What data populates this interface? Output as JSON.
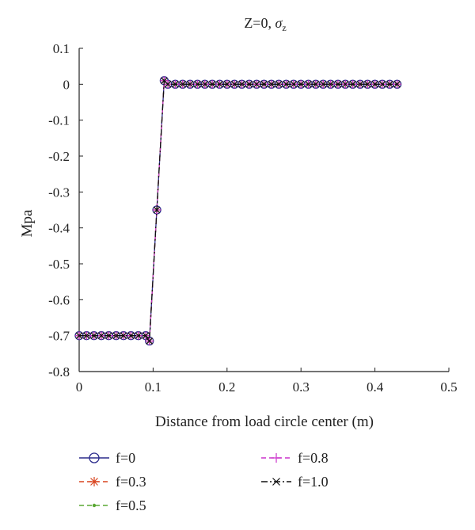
{
  "chart_data": {
    "type": "line",
    "title": "Z=0, σz",
    "title_main": "Z=0, ",
    "title_symbol": "σ",
    "title_subscript": "z",
    "xlabel": "Distance from load circle center (m)",
    "ylabel": "Mpa",
    "xlim": [
      0,
      0.5
    ],
    "ylim": [
      -0.8,
      0.1
    ],
    "xticks": [
      0,
      0.1,
      0.2,
      0.3,
      0.4,
      0.5
    ],
    "xtick_labels": [
      "0",
      "0.1",
      "0.2",
      "0.3",
      "0.4",
      "0.5"
    ],
    "yticks": [
      0.1,
      0,
      -0.1,
      -0.2,
      -0.3,
      -0.4,
      -0.5,
      -0.6,
      -0.7,
      -0.8
    ],
    "ytick_labels": [
      "0.1",
      "0",
      "-0.1",
      "-0.2",
      "-0.3",
      "-0.4",
      "-0.5",
      "-0.6",
      "-0.7",
      "-0.8"
    ],
    "grid": false,
    "legend_position": "bottom",
    "x": [
      0,
      0.01,
      0.02,
      0.03,
      0.04,
      0.05,
      0.06,
      0.07,
      0.08,
      0.09,
      0.095,
      0.105,
      0.115,
      0.12,
      0.13,
      0.14,
      0.15,
      0.16,
      0.17,
      0.18,
      0.19,
      0.2,
      0.21,
      0.22,
      0.23,
      0.24,
      0.25,
      0.26,
      0.27,
      0.28,
      0.29,
      0.3,
      0.31,
      0.32,
      0.33,
      0.34,
      0.35,
      0.36,
      0.37,
      0.38,
      0.39,
      0.4,
      0.41,
      0.42,
      0.43
    ],
    "series": [
      {
        "name": "f=0",
        "color": "#2b2b8c",
        "marker": "circle",
        "dash": "solid",
        "values": [
          -0.7,
          -0.7,
          -0.7,
          -0.7,
          -0.7,
          -0.7,
          -0.7,
          -0.7,
          -0.7,
          -0.7,
          -0.715,
          -0.35,
          0.01,
          0.0,
          0.0,
          0.0,
          0.0,
          0.0,
          0.0,
          0.0,
          0.0,
          0.0,
          0.0,
          0.0,
          0.0,
          0.0,
          0.0,
          0.0,
          0.0,
          0.0,
          0.0,
          0.0,
          0.0,
          0.0,
          0.0,
          0.0,
          0.0,
          0.0,
          0.0,
          0.0,
          0.0,
          0.0,
          0.0,
          0.0,
          0.0
        ]
      },
      {
        "name": "f=0.3",
        "color": "#d9431e",
        "marker": "star",
        "dash": "dashed",
        "values": [
          -0.7,
          -0.7,
          -0.7,
          -0.7,
          -0.7,
          -0.7,
          -0.7,
          -0.7,
          -0.7,
          -0.7,
          -0.715,
          -0.35,
          0.01,
          0.0,
          0.0,
          0.0,
          0.0,
          0.0,
          0.0,
          0.0,
          0.0,
          0.0,
          0.0,
          0.0,
          0.0,
          0.0,
          0.0,
          0.0,
          0.0,
          0.0,
          0.0,
          0.0,
          0.0,
          0.0,
          0.0,
          0.0,
          0.0,
          0.0,
          0.0,
          0.0,
          0.0,
          0.0,
          0.0,
          0.0,
          0.0
        ]
      },
      {
        "name": "f=0.5",
        "color": "#5aa833",
        "marker": "dot",
        "dash": "dashed",
        "values": [
          -0.7,
          -0.7,
          -0.7,
          -0.7,
          -0.7,
          -0.7,
          -0.7,
          -0.7,
          -0.7,
          -0.7,
          -0.715,
          -0.35,
          0.01,
          0.0,
          0.0,
          0.0,
          0.0,
          0.0,
          0.0,
          0.0,
          0.0,
          0.0,
          0.0,
          0.0,
          0.0,
          0.0,
          0.0,
          0.0,
          0.0,
          0.0,
          0.0,
          0.0,
          0.0,
          0.0,
          0.0,
          0.0,
          0.0,
          0.0,
          0.0,
          0.0,
          0.0,
          0.0,
          0.0,
          0.0,
          0.0
        ]
      },
      {
        "name": "f=0.8",
        "color": "#cc33cc",
        "marker": "plus",
        "dash": "dashed",
        "values": [
          -0.7,
          -0.7,
          -0.7,
          -0.7,
          -0.7,
          -0.7,
          -0.7,
          -0.7,
          -0.7,
          -0.7,
          -0.715,
          -0.35,
          0.01,
          0.0,
          0.0,
          0.0,
          0.0,
          0.0,
          0.0,
          0.0,
          0.0,
          0.0,
          0.0,
          0.0,
          0.0,
          0.0,
          0.0,
          0.0,
          0.0,
          0.0,
          0.0,
          0.0,
          0.0,
          0.0,
          0.0,
          0.0,
          0.0,
          0.0,
          0.0,
          0.0,
          0.0,
          0.0,
          0.0,
          0.0,
          0.0
        ]
      },
      {
        "name": "f=1.0",
        "color": "#111111",
        "marker": "cross",
        "dash": "dashdot",
        "values": [
          -0.7,
          -0.7,
          -0.7,
          -0.7,
          -0.7,
          -0.7,
          -0.7,
          -0.7,
          -0.7,
          -0.7,
          -0.715,
          -0.35,
          0.01,
          0.0,
          0.0,
          0.0,
          0.0,
          0.0,
          0.0,
          0.0,
          0.0,
          0.0,
          0.0,
          0.0,
          0.0,
          0.0,
          0.0,
          0.0,
          0.0,
          0.0,
          0.0,
          0.0,
          0.0,
          0.0,
          0.0,
          0.0,
          0.0,
          0.0,
          0.0,
          0.0,
          0.0,
          0.0,
          0.0,
          0.0,
          0.0
        ]
      }
    ]
  }
}
